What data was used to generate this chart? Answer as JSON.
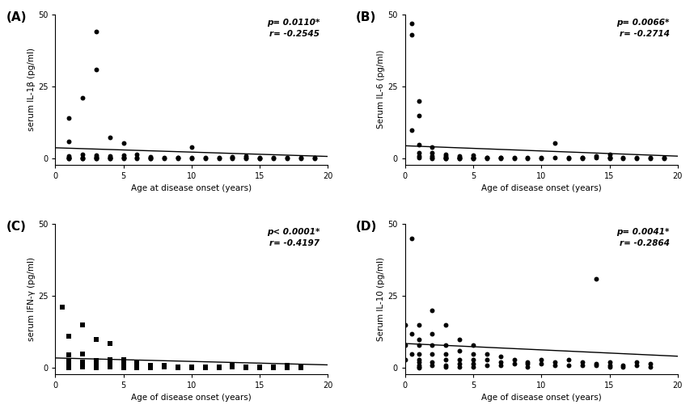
{
  "panels": [
    {
      "label": "(A)",
      "ylabel": "serum IL-1β (pg/ml)",
      "xlabel": "Age at disease onset (years)",
      "marker": "o",
      "p_text": "p= 0.0110*",
      "r_text": "r= -0.2545",
      "x": [
        1,
        1,
        1,
        1,
        1,
        1,
        1,
        2,
        2,
        2,
        2,
        2,
        3,
        3,
        3,
        3,
        3,
        3,
        3,
        4,
        4,
        4,
        4,
        4,
        4,
        5,
        5,
        5,
        5,
        5,
        6,
        6,
        6,
        7,
        7,
        7,
        7,
        8,
        8,
        9,
        9,
        9,
        10,
        10,
        10,
        11,
        11,
        12,
        12,
        13,
        13,
        13,
        14,
        14,
        14,
        15,
        15,
        15,
        16,
        16,
        17,
        17,
        18,
        18,
        19,
        19
      ],
      "y": [
        14,
        6,
        1,
        0.5,
        0.3,
        0.2,
        0.1,
        21,
        1.5,
        0.5,
        0.2,
        0.1,
        44,
        31,
        1.2,
        0.8,
        0.3,
        0.2,
        0.1,
        7.5,
        1.0,
        0.5,
        0.3,
        0.2,
        0.1,
        5.5,
        1.2,
        0.5,
        0.3,
        0.1,
        1.5,
        0.5,
        0.2,
        0.8,
        0.4,
        0.2,
        0.1,
        0.3,
        0.1,
        0.5,
        0.3,
        0.1,
        4.0,
        0.3,
        0.1,
        0.5,
        0.1,
        0.5,
        0.2,
        0.8,
        0.3,
        0.1,
        1.0,
        0.4,
        0.2,
        0.5,
        0.2,
        0.1,
        0.5,
        0.2,
        0.3,
        0.1,
        0.5,
        0.2,
        0.3,
        0.1
      ],
      "slope": -0.15,
      "intercept": 3.8,
      "xlim": [
        0,
        20
      ],
      "ylim": [
        -2,
        50
      ],
      "yticks": [
        0,
        25,
        50
      ],
      "xticks": [
        0,
        5,
        10,
        15,
        20
      ]
    },
    {
      "label": "(B)",
      "ylabel": "Serum IL-6 (pg/ml)",
      "xlabel": "Age of disease onset (years)",
      "marker": "o",
      "p_text": "p= 0.0066*",
      "r_text": "r= -0.2714",
      "x": [
        0.5,
        0.5,
        0.5,
        1,
        1,
        1,
        1,
        1,
        1,
        2,
        2,
        2,
        2,
        2,
        3,
        3,
        3,
        3,
        3,
        3,
        4,
        4,
        4,
        4,
        4,
        5,
        5,
        5,
        5,
        5,
        6,
        6,
        6,
        7,
        7,
        7,
        8,
        8,
        9,
        9,
        10,
        10,
        11,
        11,
        12,
        12,
        13,
        13,
        13,
        14,
        14,
        15,
        15,
        15,
        15,
        16,
        16,
        17,
        17,
        18,
        18,
        19,
        19
      ],
      "y": [
        47,
        43,
        10,
        20,
        15,
        5,
        2,
        1,
        0.5,
        4,
        2,
        1,
        0.5,
        0.2,
        1.5,
        1.0,
        0.5,
        0.3,
        0.2,
        0.1,
        1.0,
        0.5,
        0.3,
        0.2,
        0.1,
        1.2,
        0.5,
        0.3,
        0.2,
        0.1,
        0.5,
        0.3,
        0.1,
        0.5,
        0.3,
        0.1,
        0.5,
        0.2,
        0.3,
        0.1,
        0.5,
        0.2,
        5.5,
        0.3,
        0.5,
        0.2,
        0.5,
        0.3,
        0.1,
        1.0,
        0.3,
        1.5,
        0.5,
        0.3,
        0.1,
        0.5,
        0.2,
        0.5,
        0.2,
        0.3,
        0.1,
        0.3,
        0.1
      ],
      "slope": -0.18,
      "intercept": 4.5,
      "xlim": [
        0,
        20
      ],
      "ylim": [
        -2,
        50
      ],
      "yticks": [
        0,
        25,
        50
      ],
      "xticks": [
        0,
        5,
        10,
        15,
        20
      ]
    },
    {
      "label": "(C)",
      "ylabel": "serum IFN-γ (pg/ml)",
      "xlabel": "Age of disease onset (years)",
      "marker": "s",
      "p_text": "p< 0.0001*",
      "r_text": "r= -0.4197",
      "x": [
        0.5,
        1,
        1,
        1,
        1,
        1,
        1,
        1,
        2,
        2,
        2,
        2,
        2,
        3,
        3,
        3,
        3,
        3,
        3,
        4,
        4,
        4,
        4,
        5,
        5,
        5,
        5,
        5,
        6,
        6,
        6,
        6,
        7,
        7,
        7,
        8,
        8,
        9,
        9,
        10,
        10,
        11,
        11,
        12,
        12,
        13,
        13,
        14,
        14,
        15,
        15,
        15,
        16,
        16,
        17,
        17,
        17,
        18,
        18
      ],
      "y": [
        21,
        11,
        4.5,
        2.5,
        1.0,
        0.5,
        0.3,
        0.2,
        15,
        5,
        2,
        1,
        0.5,
        10,
        2.5,
        1.5,
        0.5,
        0.3,
        0.1,
        8.5,
        3,
        1.5,
        0.5,
        3,
        1.5,
        0.5,
        0.3,
        0.1,
        2,
        1,
        0.5,
        0.2,
        1,
        0.5,
        0.2,
        1,
        0.3,
        0.5,
        0.2,
        0.5,
        0.2,
        0.5,
        0.2,
        0.5,
        0.2,
        1.0,
        0.3,
        0.5,
        0.2,
        0.5,
        0.3,
        0.1,
        0.5,
        0.2,
        1.0,
        0.5,
        0.2,
        0.3,
        0.1
      ],
      "slope": -0.12,
      "intercept": 3.5,
      "xlim": [
        0,
        20
      ],
      "ylim": [
        -2,
        50
      ],
      "yticks": [
        0,
        25,
        50
      ],
      "xticks": [
        0,
        5,
        10,
        15,
        20
      ]
    },
    {
      "label": "(D)",
      "ylabel": "Serum IL-10 (pg/ml)",
      "xlabel": "Age of disease onset (years)",
      "marker": "o",
      "p_text": "p= 0.0041*",
      "r_text": "r= -0.2864",
      "x": [
        0,
        0,
        0,
        0.5,
        0.5,
        0.5,
        1,
        1,
        1,
        1,
        1,
        1,
        1,
        1,
        1,
        2,
        2,
        2,
        2,
        2,
        2,
        3,
        3,
        3,
        3,
        3,
        3,
        4,
        4,
        4,
        4,
        4,
        5,
        5,
        5,
        5,
        5,
        6,
        6,
        6,
        7,
        7,
        7,
        8,
        8,
        9,
        9,
        9,
        10,
        10,
        11,
        11,
        12,
        12,
        13,
        13,
        14,
        14,
        14,
        15,
        15,
        15,
        16,
        16,
        17,
        17,
        18,
        18
      ],
      "y": [
        15,
        8,
        3,
        45,
        12,
        5,
        15,
        10,
        8,
        5,
        3,
        2,
        1,
        0.5,
        0.2,
        20,
        12,
        8,
        5,
        2,
        1,
        15,
        8,
        5,
        3,
        1,
        0.5,
        10,
        6,
        3,
        1.5,
        0.5,
        8,
        5,
        3,
        1.5,
        0.5,
        5,
        3,
        1,
        4,
        2,
        1,
        3,
        1.5,
        2,
        1.5,
        0.5,
        3,
        1.5,
        2,
        1,
        3,
        1,
        2,
        1,
        1.5,
        31,
        1,
        2,
        1,
        0.5,
        1,
        0.5,
        2,
        1,
        1.5,
        0.5
      ],
      "slope": -0.22,
      "intercept": 8.5,
      "xlim": [
        0,
        20
      ],
      "ylim": [
        -2,
        50
      ],
      "yticks": [
        0,
        25,
        50
      ],
      "xticks": [
        0,
        5,
        10,
        15,
        20
      ]
    }
  ],
  "dot_color": "#000000",
  "dot_size": 18,
  "line_color": "#000000",
  "background_color": "#ffffff",
  "font_color": "#000000"
}
